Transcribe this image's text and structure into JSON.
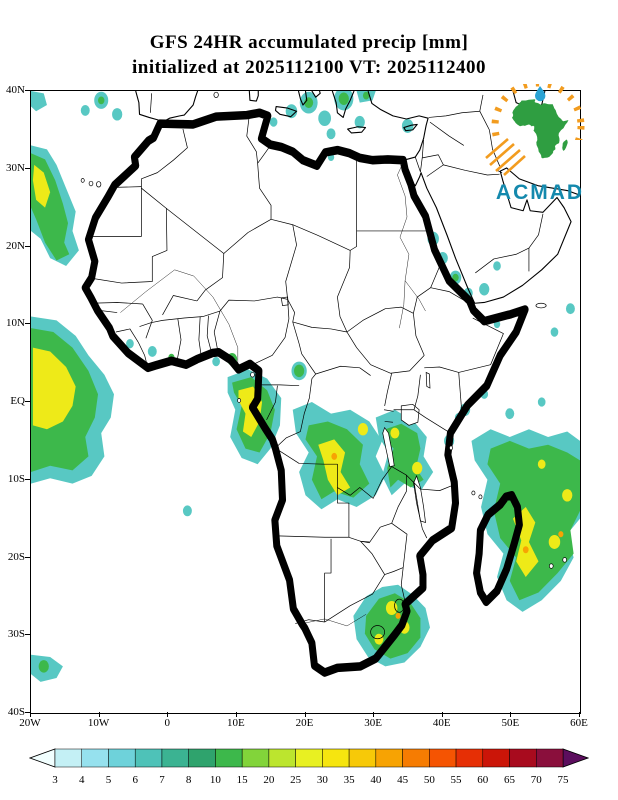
{
  "title": {
    "line1": "GFS 24HR accumulated precip [mm]",
    "line2": "initialized at 2025112100 VT: 2025112400"
  },
  "logo": {
    "text": "ACMAD"
  },
  "axes": {
    "y_labels": [
      "40N",
      "30N",
      "20N",
      "10N",
      "EQ",
      "10S",
      "20S",
      "30S",
      "40S"
    ],
    "x_labels": [
      "20W",
      "10W",
      "0",
      "10E",
      "20E",
      "30E",
      "40E",
      "50E",
      "60E"
    ]
  },
  "colorbar": {
    "values": [
      "3",
      "4",
      "5",
      "6",
      "7",
      "8",
      "10",
      "15",
      "20",
      "25",
      "30",
      "35",
      "40",
      "45",
      "50",
      "55",
      "60",
      "65",
      "70",
      "75"
    ],
    "segment_colors": [
      "#c4f0f5",
      "#96e1ee",
      "#6ed2da",
      "#4ec2b8",
      "#3bb392",
      "#2fa36d",
      "#3db84b",
      "#82d43a",
      "#bce52e",
      "#e8f022",
      "#f6e50f",
      "#f7c908",
      "#f7a303",
      "#f67c02",
      "#f55402",
      "#e62f05",
      "#cb1508",
      "#a80b1e",
      "#8a0f3c"
    ],
    "left_arrow_color": "#f2ffff",
    "right_arrow_color": "#5c0e5e"
  },
  "chart_data": {
    "type": "heatmap",
    "title": "GFS 24HR accumulated precip [mm]",
    "subtitle": "initialized at 2025112100 VT: 2025112400",
    "model": "GFS",
    "accumulation_hours": 24,
    "init_time": "2025112100",
    "valid_time": "2025112400",
    "units": "mm",
    "lon_tick_labels": [
      "20W",
      "10W",
      "0",
      "10E",
      "20E",
      "30E",
      "40E",
      "50E",
      "60E"
    ],
    "lat_tick_labels": [
      "40N",
      "30N",
      "20N",
      "10N",
      "EQ",
      "10S",
      "20S",
      "30S",
      "40S"
    ],
    "colorscale_values": [
      3,
      4,
      5,
      6,
      7,
      8,
      10,
      15,
      20,
      25,
      30,
      35,
      40,
      45,
      50,
      55,
      60,
      65,
      70,
      75
    ],
    "precip_intensity_colors": {
      "light": "#58c8c3",
      "moderate": "#3db84b",
      "heavy": "#eeea18",
      "intense": "#f7a303"
    },
    "precip_areas": [
      "Eastern tropical Atlantic near the Equator off West Africa",
      "NW African coast near Canary Islands",
      "Western Mediterranean and southern Europe scattered cells",
      "Gabon-Congo coast and Gulf of Guinea",
      "DR Congo / Angola interior",
      "Tanzania and Lake Victoria region",
      "Red Sea and Gulf of Aden scattered cells",
      "Mozambique Channel, Madagascar and SW Indian Ocean",
      "Eastern South Africa coast",
      "SE Atlantic near 35S"
    ]
  }
}
